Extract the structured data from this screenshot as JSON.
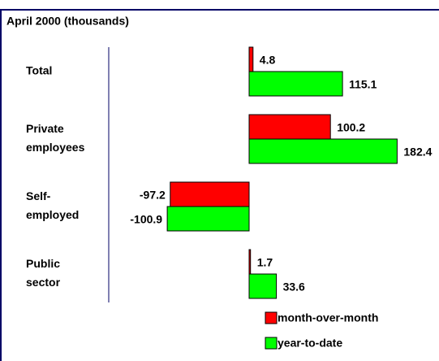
{
  "chart_data": {
    "type": "bar",
    "orientation": "horizontal",
    "subtitle": "April 2000 (thousands)",
    "categories": [
      [
        "Total"
      ],
      [
        "Private",
        "employees"
      ],
      [
        "Self-",
        "employed"
      ],
      [
        "Public",
        "sector"
      ]
    ],
    "series": [
      {
        "name": "month-over-month",
        "color": "#ff0000",
        "values": [
          4.8,
          100.2,
          -97.2,
          1.7
        ]
      },
      {
        "name": "year-to-date",
        "color": "#00ff00",
        "values": [
          115.1,
          182.4,
          -100.9,
          33.6
        ]
      }
    ],
    "xlim": [
      -173,
      234
    ]
  }
}
